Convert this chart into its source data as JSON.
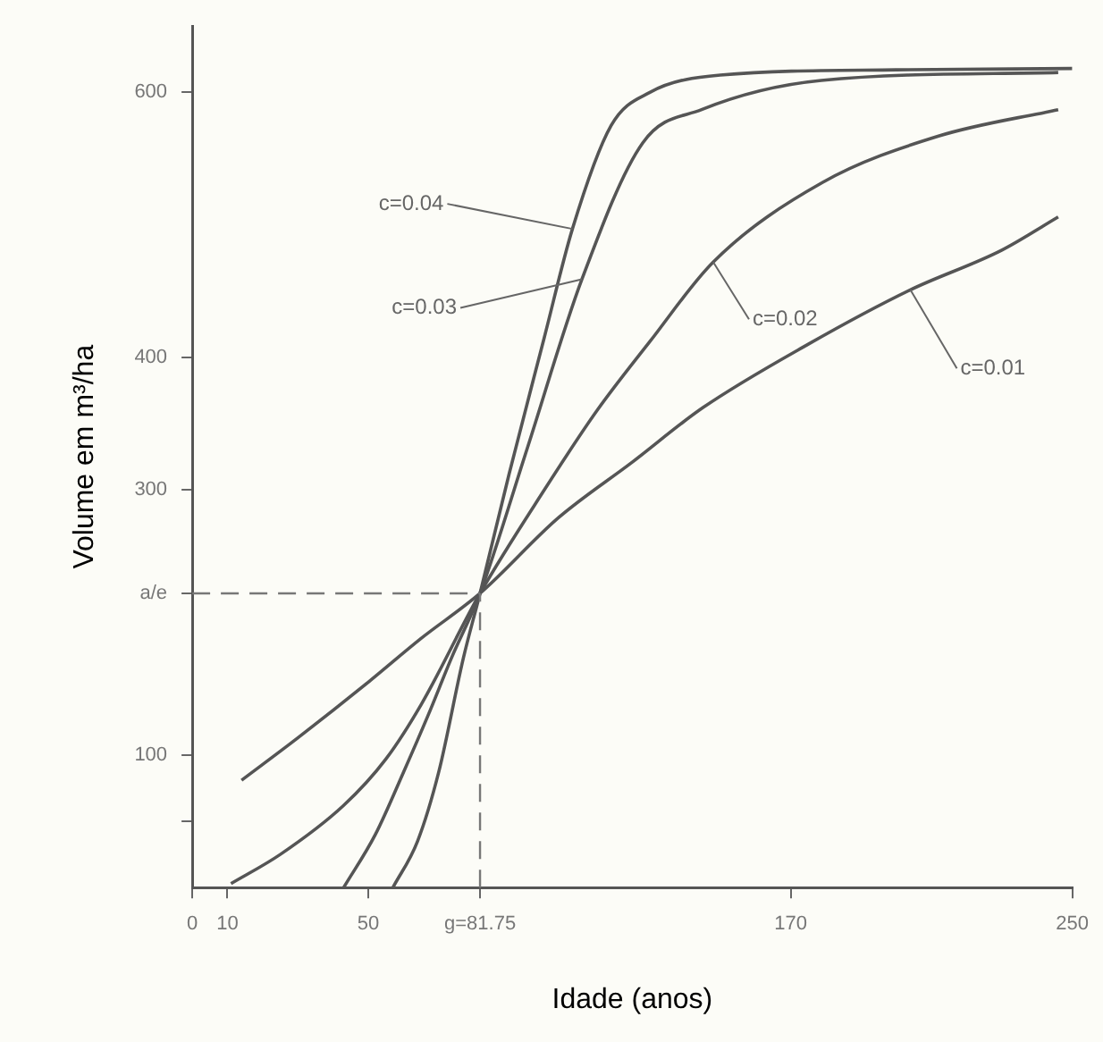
{
  "chart_data": {
    "type": "line",
    "xlabel": "Idade (anos)",
    "ylabel": "Volume em m³/ha",
    "xlim": [
      0,
      250
    ],
    "xticks": [
      0,
      10,
      50,
      {
        "value": 81.75,
        "label": "g=81.75"
      },
      170,
      250
    ],
    "ylim": [
      0,
      650
    ],
    "yticks": [
      {
        "value": 50,
        "label": null
      },
      100,
      {
        "value": 222,
        "label": "a/e"
      },
      300,
      400,
      600
    ],
    "grid": false,
    "legend": false,
    "marker": "none",
    "line_style": "solid",
    "series": [
      {
        "color": "#555555",
        "x": [
          57,
          64,
          70,
          77,
          81.75,
          90,
          100,
          108,
          119,
          130,
          150,
          200,
          250
        ],
        "values": [
          0,
          35,
          87,
          173,
          222,
          312,
          415,
          497,
          575,
          600,
          613,
          617,
          618
        ]
      },
      {
        "color": "#555555",
        "x": [
          43,
          52,
          60,
          67,
          73.6,
          81.75,
          95,
          110.7,
          128,
          144.7,
          178.7,
          246
        ],
        "values": [
          0,
          40,
          87,
          130,
          173,
          222,
          330,
          459,
          562,
          587,
          609,
          615
        ]
      },
      {
        "color": "#555555",
        "x": [
          11,
          25,
          43,
          55,
          65,
          81.75,
          100,
          115,
          130,
          148,
          179,
          212,
          246
        ],
        "values": [
          3,
          25,
          62,
          97,
          138,
          222,
          300,
          360,
          412,
          472,
          532,
          567,
          587
        ]
      },
      {
        "color": "#555555",
        "x": [
          14,
          30,
          50,
          65,
          81.75,
          104,
          125,
          145,
          175,
          204,
          230,
          246
        ],
        "values": [
          81,
          113,
          155,
          188,
          222,
          279,
          321,
          362,
          410,
          451,
          481,
          506
        ]
      }
    ],
    "ref_lines": [
      {
        "axis": "y",
        "value": 222,
        "line_style": "dashed",
        "color": "#777777"
      },
      {
        "axis": "x",
        "value": 81.75,
        "line_style": "dashed",
        "color": "#777777"
      }
    ],
    "annotations": [
      {
        "text": "c=0.04",
        "x": 108,
        "y": 497
      },
      {
        "text": "c=0.03",
        "x": 110.7,
        "y": 459
      },
      {
        "text": "c=0.02",
        "x": 148,
        "y": 472
      },
      {
        "text": "c=0.01",
        "x": 204,
        "y": 451
      }
    ]
  }
}
